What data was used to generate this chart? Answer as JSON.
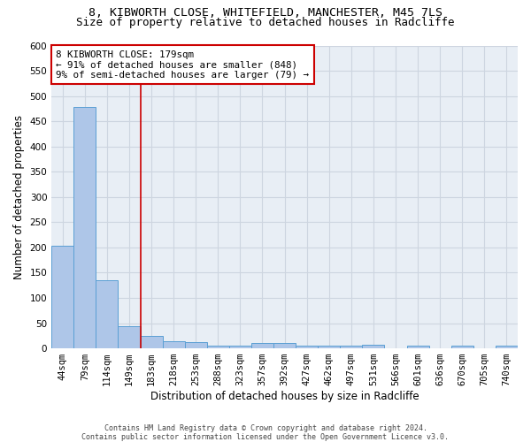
{
  "title": "8, KIBWORTH CLOSE, WHITEFIELD, MANCHESTER, M45 7LS",
  "subtitle": "Size of property relative to detached houses in Radcliffe",
  "xlabel": "Distribution of detached houses by size in Radcliffe",
  "ylabel": "Number of detached properties",
  "footer": "Contains HM Land Registry data © Crown copyright and database right 2024.\nContains public sector information licensed under the Open Government Licence v3.0.",
  "bar_labels": [
    "44sqm",
    "79sqm",
    "114sqm",
    "149sqm",
    "183sqm",
    "218sqm",
    "253sqm",
    "288sqm",
    "323sqm",
    "357sqm",
    "392sqm",
    "427sqm",
    "462sqm",
    "497sqm",
    "531sqm",
    "566sqm",
    "601sqm",
    "636sqm",
    "670sqm",
    "705sqm",
    "740sqm"
  ],
  "bar_values": [
    203,
    478,
    135,
    44,
    25,
    15,
    12,
    6,
    5,
    10,
    11,
    6,
    5,
    5,
    8,
    1,
    5,
    1,
    5,
    1,
    5
  ],
  "bar_color": "#aec6e8",
  "bar_edge_color": "#5a9fd4",
  "ylim": [
    0,
    600
  ],
  "yticks": [
    0,
    50,
    100,
    150,
    200,
    250,
    300,
    350,
    400,
    450,
    500,
    550,
    600
  ],
  "property_line_bin_index": 4,
  "annotation_text": "8 KIBWORTH CLOSE: 179sqm\n← 91% of detached houses are smaller (848)\n9% of semi-detached houses are larger (79) →",
  "annotation_box_color": "#ffffff",
  "annotation_box_edge_color": "#cc0000",
  "vline_color": "#cc0000",
  "grid_color": "#cdd5e0",
  "bg_color": "#e8eef5",
  "title_fontsize": 9.5,
  "subtitle_fontsize": 9,
  "tick_fontsize": 7.5,
  "ylabel_fontsize": 8.5,
  "xlabel_fontsize": 8.5,
  "annotation_fontsize": 7.8,
  "footer_fontsize": 6.0
}
